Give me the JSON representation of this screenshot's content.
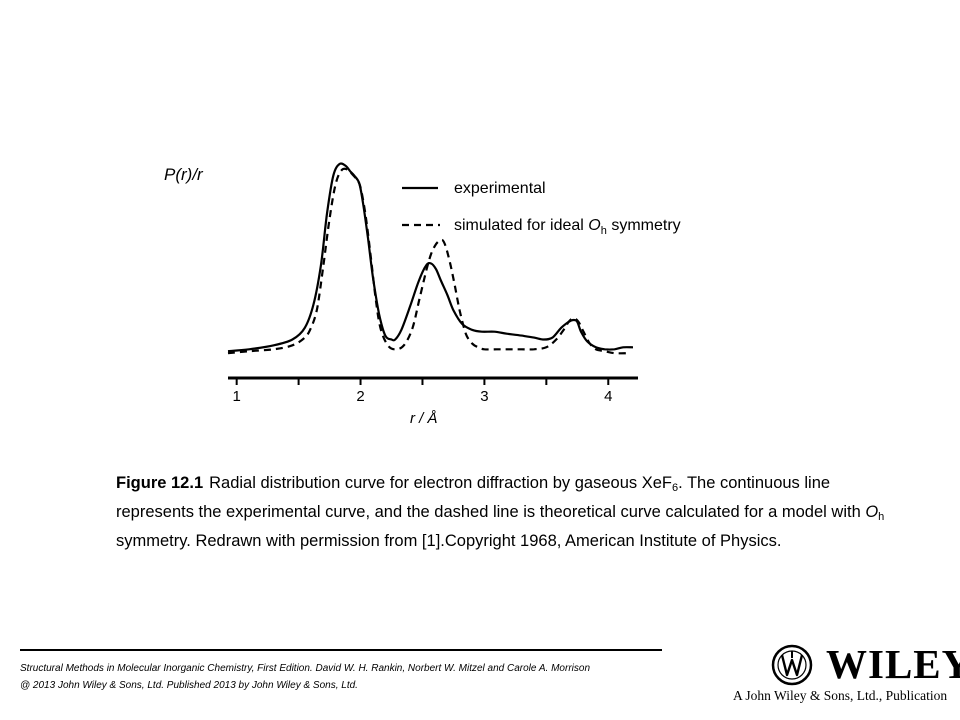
{
  "chart_data": {
    "type": "line",
    "ylabel": "P(r)/r",
    "xlabel": "r / Å",
    "xlim": [
      0.93,
      4.24
    ],
    "ylim": [
      0,
      1.0
    ],
    "x_ticks": [
      "1",
      "2",
      "3",
      "4"
    ],
    "legend_position": "top-right",
    "series": [
      {
        "name": "experimental",
        "style": "solid",
        "x": [
          0.93,
          1.1,
          1.3,
          1.45,
          1.55,
          1.62,
          1.68,
          1.73,
          1.78,
          1.83,
          1.88,
          1.92,
          1.95,
          1.99,
          2.02,
          2.06,
          2.1,
          2.15,
          2.2,
          2.25,
          2.28,
          2.33,
          2.4,
          2.47,
          2.53,
          2.57,
          2.61,
          2.65,
          2.7,
          2.75,
          2.82,
          2.9,
          2.98,
          3.08,
          3.18,
          3.3,
          3.4,
          3.48,
          3.55,
          3.62,
          3.68,
          3.72,
          3.75,
          3.78,
          3.83,
          3.9,
          3.97,
          4.05,
          4.12,
          4.2
        ],
        "values": [
          0.04,
          0.05,
          0.07,
          0.1,
          0.16,
          0.28,
          0.48,
          0.75,
          0.94,
          1.0,
          0.99,
          0.96,
          0.94,
          0.9,
          0.8,
          0.62,
          0.42,
          0.23,
          0.12,
          0.1,
          0.1,
          0.15,
          0.27,
          0.4,
          0.48,
          0.49,
          0.46,
          0.4,
          0.33,
          0.25,
          0.18,
          0.15,
          0.14,
          0.14,
          0.13,
          0.12,
          0.11,
          0.1,
          0.11,
          0.16,
          0.19,
          0.2,
          0.19,
          0.14,
          0.09,
          0.06,
          0.05,
          0.05,
          0.06,
          0.06
        ]
      },
      {
        "name": "simulated for ideal O_h symmetry",
        "legend_label": "simulated for ideal ",
        "legend_symbol": "O",
        "legend_sub": "h",
        "legend_suffix": " symmetry",
        "style": "dashed",
        "x": [
          0.93,
          1.1,
          1.3,
          1.45,
          1.55,
          1.6,
          1.65,
          1.7,
          1.75,
          1.8,
          1.85,
          1.9,
          1.93,
          1.97,
          2.0,
          2.04,
          2.08,
          2.12,
          2.16,
          2.22,
          2.28,
          2.35,
          2.42,
          2.48,
          2.55,
          2.6,
          2.65,
          2.68,
          2.72,
          2.76,
          2.8,
          2.85,
          2.9,
          2.95,
          3.0,
          3.1,
          3.2,
          3.3,
          3.4,
          3.5,
          3.58,
          3.64,
          3.68,
          3.72,
          3.76,
          3.8,
          3.85,
          3.9,
          3.97,
          4.05,
          4.15
        ],
        "values": [
          0.03,
          0.04,
          0.05,
          0.07,
          0.11,
          0.16,
          0.26,
          0.48,
          0.72,
          0.9,
          0.97,
          0.97,
          0.95,
          0.92,
          0.88,
          0.74,
          0.54,
          0.32,
          0.16,
          0.07,
          0.05,
          0.07,
          0.16,
          0.32,
          0.5,
          0.58,
          0.61,
          0.59,
          0.5,
          0.38,
          0.25,
          0.13,
          0.08,
          0.06,
          0.05,
          0.05,
          0.05,
          0.05,
          0.05,
          0.06,
          0.1,
          0.15,
          0.19,
          0.21,
          0.19,
          0.14,
          0.08,
          0.05,
          0.04,
          0.03,
          0.03
        ]
      }
    ]
  },
  "caption": {
    "label": "Figure 12.1",
    "line1_before": "Radial distribution curve for electron diffraction by gaseous XeF",
    "line1_sub": "6",
    "line1_after": ". The continuous line",
    "line2_before": "represents the experimental curve, and the dashed line is theoretical curve calculated for a model with ",
    "line2_symbol": "O",
    "line2_sub": "h",
    "line3": "symmetry. Redrawn with permission from [1].Copyright 1968, American Institute of Physics."
  },
  "footer": {
    "citation": "Structural Methods in Molecular Inorganic Chemistry, First Edition. David W. H. Rankin, Norbert W. Mitzel and Carole A. Morrison",
    "copyright": "@ 2013 John Wiley & Sons, Ltd. Published 2013 by John Wiley & Sons, Ltd."
  },
  "publisher": {
    "wordmark": "WILEY",
    "tagline": "A John Wiley & Sons, Ltd., Publication"
  }
}
